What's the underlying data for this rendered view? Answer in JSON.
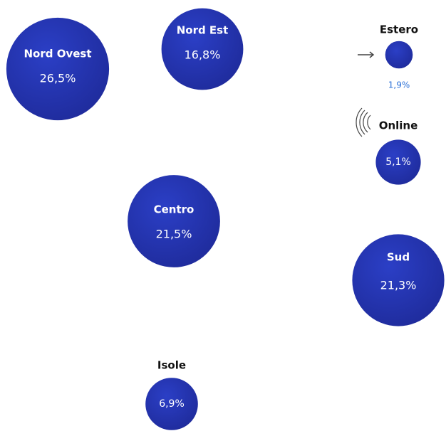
{
  "chart_data": {
    "type": "bubble",
    "series": [
      {
        "name": "Nord Ovest",
        "label": "26,5%",
        "value": 26.5
      },
      {
        "name": "Nord Est",
        "label": "16,8%",
        "value": 16.8
      },
      {
        "name": "Estero",
        "label": "1,9%",
        "value": 1.9
      },
      {
        "name": "Online",
        "label": "5,1%",
        "value": 5.1
      },
      {
        "name": "Centro",
        "label": "21,5%",
        "value": 21.5
      },
      {
        "name": "Sud",
        "label": "21,3%",
        "value": 21.3
      },
      {
        "name": "Isole",
        "label": "6,9%",
        "value": 6.9
      }
    ],
    "colors": {
      "bubble": "#2b3fc6",
      "bubble_dark": "#1e2a99",
      "inside_text": "#ffffff",
      "outside_name": "#111111",
      "small_value": "#2f73d8",
      "icon": "#444444"
    },
    "icons": {
      "estero": "arrow-right-icon",
      "online": "signal-waves-icon"
    }
  }
}
